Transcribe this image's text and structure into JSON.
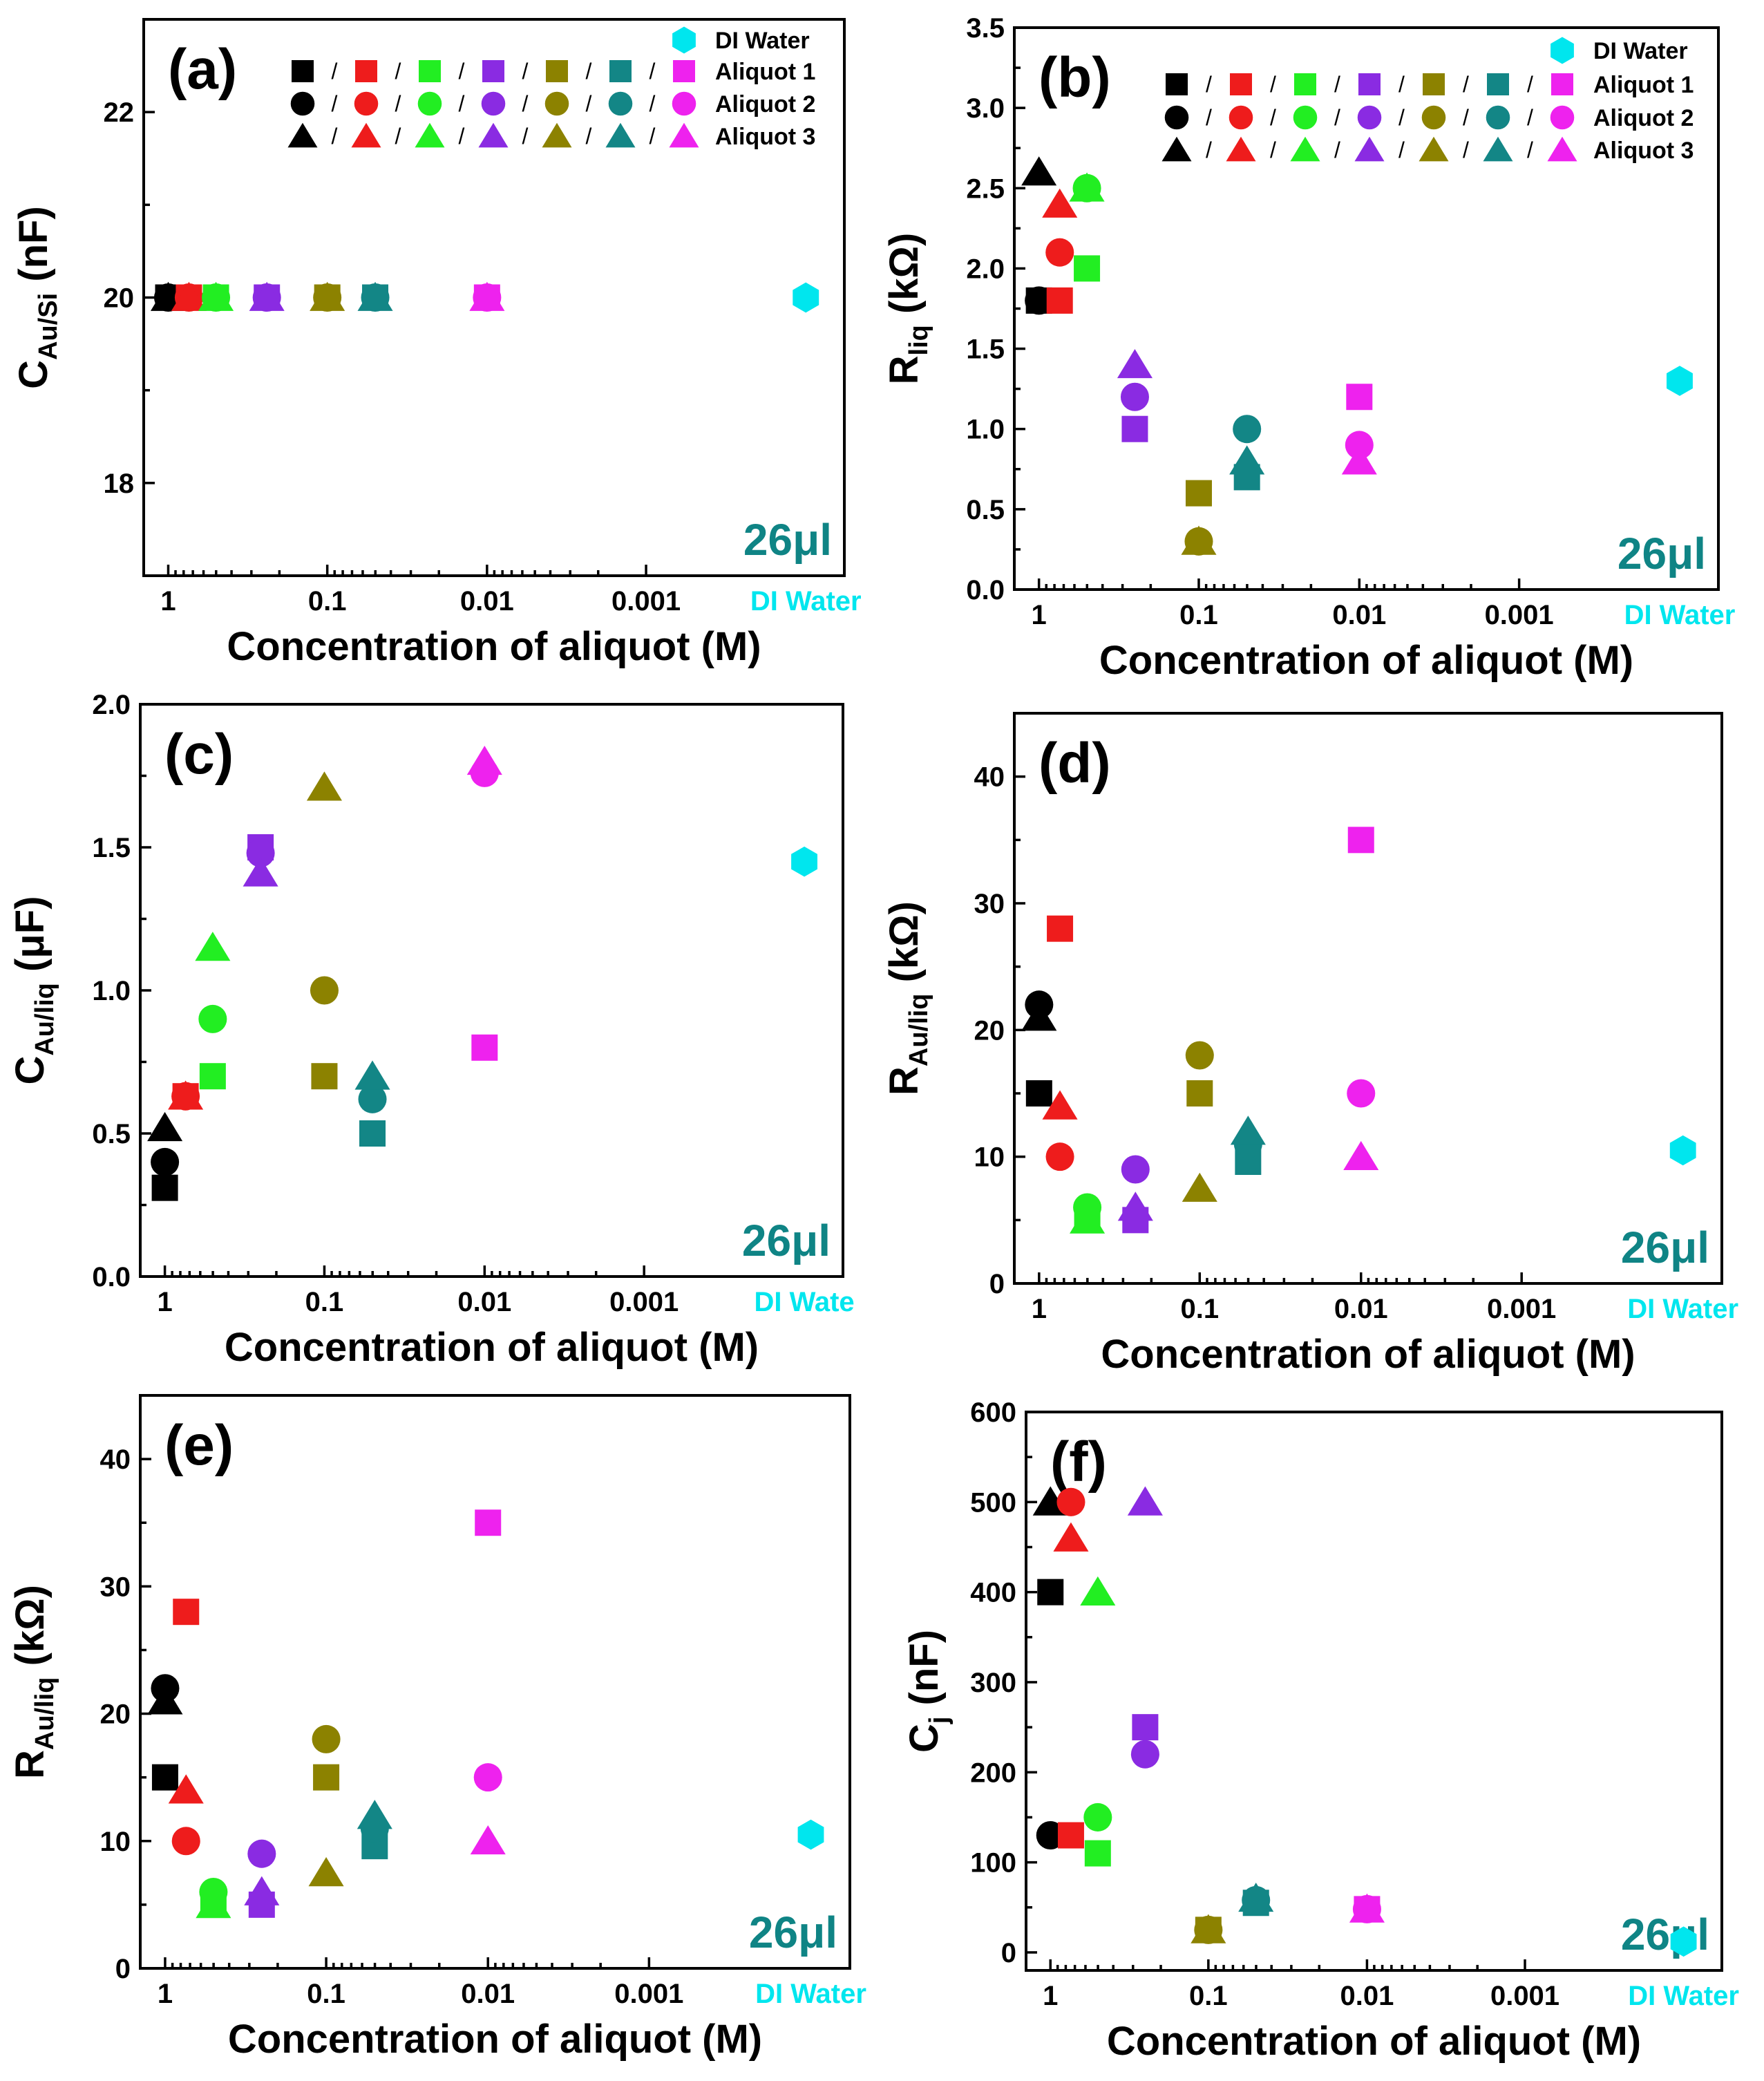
{
  "colors": {
    "black": "#000000",
    "red": "#ee1c1c",
    "green": "#22ee22",
    "purple": "#8a2be2",
    "olive": "#8c8200",
    "teal": "#138686",
    "magenta": "#ee22ee",
    "cyan": "#00e6ee"
  },
  "legend": {
    "aliquot_labels": [
      "Aliquot 1",
      "Aliquot 2",
      "Aliquot 3"
    ],
    "dw_label": "DI Water",
    "slash": "/"
  },
  "chart_data": [
    {
      "type": "scatter",
      "tag": "(a)",
      "volume_label": "26μl",
      "ylabel_main": "C",
      "ylabel_sub": "Au/Si",
      "ylabel_unit": " (nF)",
      "xlabel": "Concentration of aliquot (M)",
      "ylim": [
        17.0,
        23.0
      ],
      "yticks": [
        18,
        20,
        22
      ],
      "ytick_labels": [
        "18",
        "20",
        "22"
      ],
      "x_categories": [
        "1",
        "0.1",
        "0.01",
        "0.001",
        "DI Water"
      ],
      "show_legend": true,
      "points": [
        {
          "c": "black",
          "s": "square",
          "x": 0.0,
          "y": 20.0
        },
        {
          "c": "black",
          "s": "circle",
          "x": 0.0,
          "y": 20.0
        },
        {
          "c": "black",
          "s": "triangle",
          "x": 0.0,
          "y": 20.0
        },
        {
          "c": "red",
          "s": "square",
          "x": 0.13,
          "y": 20.0
        },
        {
          "c": "red",
          "s": "circle",
          "x": 0.13,
          "y": 20.0
        },
        {
          "c": "red",
          "s": "triangle",
          "x": 0.13,
          "y": 20.0
        },
        {
          "c": "green",
          "s": "square",
          "x": 0.3,
          "y": 20.0
        },
        {
          "c": "green",
          "s": "circle",
          "x": 0.3,
          "y": 20.0
        },
        {
          "c": "green",
          "s": "triangle",
          "x": 0.3,
          "y": 20.0
        },
        {
          "c": "purple",
          "s": "square",
          "x": 0.62,
          "y": 20.0
        },
        {
          "c": "purple",
          "s": "circle",
          "x": 0.62,
          "y": 20.0
        },
        {
          "c": "purple",
          "s": "triangle",
          "x": 0.62,
          "y": 20.0
        },
        {
          "c": "olive",
          "s": "square",
          "x": 1.0,
          "y": 20.0
        },
        {
          "c": "olive",
          "s": "circle",
          "x": 1.0,
          "y": 20.0
        },
        {
          "c": "olive",
          "s": "triangle",
          "x": 1.0,
          "y": 20.0
        },
        {
          "c": "teal",
          "s": "square",
          "x": 1.3,
          "y": 20.0
        },
        {
          "c": "teal",
          "s": "circle",
          "x": 1.3,
          "y": 20.0
        },
        {
          "c": "teal",
          "s": "triangle",
          "x": 1.3,
          "y": 20.0
        },
        {
          "c": "magenta",
          "s": "square",
          "x": 2.0,
          "y": 20.0
        },
        {
          "c": "magenta",
          "s": "circle",
          "x": 2.0,
          "y": 20.0
        },
        {
          "c": "magenta",
          "s": "triangle",
          "x": 2.0,
          "y": 20.0
        },
        {
          "c": "cyan",
          "s": "hexagon",
          "x": 4.0,
          "y": 20.0
        }
      ]
    },
    {
      "type": "scatter",
      "tag": "(b)",
      "volume_label": "26μl",
      "ylabel_main": "R",
      "ylabel_sub": "liq",
      "ylabel_unit": " (kΩ)",
      "xlabel": "Concentration of aliquot (M)",
      "ylim": [
        0.0,
        3.5
      ],
      "yticks": [
        0.0,
        0.5,
        1.0,
        1.5,
        2.0,
        2.5,
        3.0,
        3.5
      ],
      "ytick_labels": [
        "0.0",
        "0.5",
        "1.0",
        "1.5",
        "2.0",
        "2.5",
        "3.0",
        "3.5"
      ],
      "x_categories": [
        "1",
        "0.1",
        "0.01",
        "0.001",
        "DI Water"
      ],
      "show_legend": true,
      "points": [
        {
          "c": "black",
          "s": "square",
          "x": 0.0,
          "y": 1.8
        },
        {
          "c": "black",
          "s": "circle",
          "x": 0.0,
          "y": 1.8
        },
        {
          "c": "black",
          "s": "triangle",
          "x": 0.0,
          "y": 2.6
        },
        {
          "c": "red",
          "s": "square",
          "x": 0.13,
          "y": 1.8
        },
        {
          "c": "red",
          "s": "circle",
          "x": 0.13,
          "y": 2.1
        },
        {
          "c": "red",
          "s": "triangle",
          "x": 0.13,
          "y": 2.4
        },
        {
          "c": "green",
          "s": "square",
          "x": 0.3,
          "y": 2.0
        },
        {
          "c": "green",
          "s": "circle",
          "x": 0.3,
          "y": 2.5
        },
        {
          "c": "green",
          "s": "triangle",
          "x": 0.3,
          "y": 2.5
        },
        {
          "c": "purple",
          "s": "square",
          "x": 0.6,
          "y": 1.0
        },
        {
          "c": "purple",
          "s": "circle",
          "x": 0.6,
          "y": 1.2
        },
        {
          "c": "purple",
          "s": "triangle",
          "x": 0.6,
          "y": 1.4
        },
        {
          "c": "olive",
          "s": "square",
          "x": 1.0,
          "y": 0.6
        },
        {
          "c": "olive",
          "s": "circle",
          "x": 1.0,
          "y": 0.3
        },
        {
          "c": "olive",
          "s": "triangle",
          "x": 1.0,
          "y": 0.3
        },
        {
          "c": "teal",
          "s": "square",
          "x": 1.3,
          "y": 0.7
        },
        {
          "c": "teal",
          "s": "circle",
          "x": 1.3,
          "y": 1.0
        },
        {
          "c": "teal",
          "s": "triangle",
          "x": 1.3,
          "y": 0.8
        },
        {
          "c": "magenta",
          "s": "square",
          "x": 2.0,
          "y": 1.2
        },
        {
          "c": "magenta",
          "s": "circle",
          "x": 2.0,
          "y": 0.9
        },
        {
          "c": "magenta",
          "s": "triangle",
          "x": 2.0,
          "y": 0.8
        },
        {
          "c": "cyan",
          "s": "hexagon",
          "x": 4.0,
          "y": 1.3
        }
      ]
    },
    {
      "type": "scatter",
      "tag": "(c)",
      "volume_label": "26μl",
      "ylabel_main": "C",
      "ylabel_sub": "Au/liq",
      "ylabel_unit": " (μF)",
      "xlabel": "Concentration of aliquot (M)",
      "ylim": [
        0.0,
        2.0
      ],
      "yticks": [
        0.0,
        0.5,
        1.0,
        1.5,
        2.0
      ],
      "ytick_labels": [
        "0.0",
        "0.5",
        "1.0",
        "1.5",
        "2.0"
      ],
      "x_categories": [
        "1",
        "0.1",
        "0.01",
        "0.001",
        "DI Wate"
      ],
      "show_legend": false,
      "points": [
        {
          "c": "black",
          "s": "square",
          "x": 0.0,
          "y": 0.31
        },
        {
          "c": "black",
          "s": "circle",
          "x": 0.0,
          "y": 0.4
        },
        {
          "c": "black",
          "s": "triangle",
          "x": 0.0,
          "y": 0.52
        },
        {
          "c": "red",
          "s": "square",
          "x": 0.13,
          "y": 0.63
        },
        {
          "c": "red",
          "s": "circle",
          "x": 0.13,
          "y": 0.63
        },
        {
          "c": "red",
          "s": "triangle",
          "x": 0.13,
          "y": 0.63
        },
        {
          "c": "green",
          "s": "square",
          "x": 0.3,
          "y": 0.7
        },
        {
          "c": "green",
          "s": "circle",
          "x": 0.3,
          "y": 0.9
        },
        {
          "c": "green",
          "s": "triangle",
          "x": 0.3,
          "y": 1.15
        },
        {
          "c": "purple",
          "s": "square",
          "x": 0.6,
          "y": 1.5
        },
        {
          "c": "purple",
          "s": "circle",
          "x": 0.6,
          "y": 1.48
        },
        {
          "c": "purple",
          "s": "triangle",
          "x": 0.6,
          "y": 1.41
        },
        {
          "c": "olive",
          "s": "square",
          "x": 1.0,
          "y": 0.7
        },
        {
          "c": "olive",
          "s": "circle",
          "x": 1.0,
          "y": 1.0
        },
        {
          "c": "olive",
          "s": "triangle",
          "x": 1.0,
          "y": 1.71
        },
        {
          "c": "teal",
          "s": "square",
          "x": 1.3,
          "y": 0.5
        },
        {
          "c": "teal",
          "s": "circle",
          "x": 1.3,
          "y": 0.62
        },
        {
          "c": "teal",
          "s": "triangle",
          "x": 1.3,
          "y": 0.7
        },
        {
          "c": "magenta",
          "s": "square",
          "x": 2.0,
          "y": 0.8
        },
        {
          "c": "magenta",
          "s": "circle",
          "x": 2.0,
          "y": 1.76
        },
        {
          "c": "magenta",
          "s": "triangle",
          "x": 2.0,
          "y": 1.8
        },
        {
          "c": "cyan",
          "s": "hexagon",
          "x": 4.0,
          "y": 1.45
        }
      ]
    },
    {
      "type": "scatter",
      "tag": "(d)",
      "volume_label": "26μl",
      "ylabel_main": "R",
      "ylabel_sub": "Au/liq",
      "ylabel_unit": " (kΩ)",
      "xlabel": "Concentration of aliquot (M)",
      "ylim": [
        0,
        45
      ],
      "yticks": [
        0,
        10,
        20,
        30,
        40
      ],
      "ytick_labels": [
        "0",
        "10",
        "20",
        "30",
        "40"
      ],
      "x_categories": [
        "1",
        "0.1",
        "0.01",
        "0.001",
        "DI Water"
      ],
      "show_legend": false,
      "points": [
        {
          "c": "black",
          "s": "square",
          "x": 0.0,
          "y": 15.0
        },
        {
          "c": "black",
          "s": "circle",
          "x": 0.0,
          "y": 22.0
        },
        {
          "c": "black",
          "s": "triangle",
          "x": 0.0,
          "y": 21.0
        },
        {
          "c": "red",
          "s": "square",
          "x": 0.13,
          "y": 28.0
        },
        {
          "c": "red",
          "s": "circle",
          "x": 0.13,
          "y": 10.0
        },
        {
          "c": "red",
          "s": "triangle",
          "x": 0.13,
          "y": 14.0
        },
        {
          "c": "green",
          "s": "square",
          "x": 0.3,
          "y": 5.0
        },
        {
          "c": "green",
          "s": "circle",
          "x": 0.3,
          "y": 6.0
        },
        {
          "c": "green",
          "s": "triangle",
          "x": 0.3,
          "y": 5.0
        },
        {
          "c": "purple",
          "s": "square",
          "x": 0.6,
          "y": 5.0
        },
        {
          "c": "purple",
          "s": "circle",
          "x": 0.6,
          "y": 9.0
        },
        {
          "c": "purple",
          "s": "triangle",
          "x": 0.6,
          "y": 6.0
        },
        {
          "c": "olive",
          "s": "square",
          "x": 1.0,
          "y": 15.0
        },
        {
          "c": "olive",
          "s": "circle",
          "x": 1.0,
          "y": 18.0
        },
        {
          "c": "olive",
          "s": "triangle",
          "x": 1.0,
          "y": 7.5
        },
        {
          "c": "teal",
          "s": "square",
          "x": 1.3,
          "y": 9.6
        },
        {
          "c": "teal",
          "s": "circle",
          "x": 1.3,
          "y": 11.0
        },
        {
          "c": "teal",
          "s": "triangle",
          "x": 1.3,
          "y": 12.0
        },
        {
          "c": "magenta",
          "s": "square",
          "x": 2.0,
          "y": 35.0
        },
        {
          "c": "magenta",
          "s": "circle",
          "x": 2.0,
          "y": 15.0
        },
        {
          "c": "magenta",
          "s": "triangle",
          "x": 2.0,
          "y": 10.0
        },
        {
          "c": "cyan",
          "s": "hexagon",
          "x": 4.0,
          "y": 10.5
        }
      ]
    },
    {
      "type": "scatter",
      "tag": "(e)",
      "volume_label": "26μl",
      "ylabel_main": "R",
      "ylabel_sub": "Au/liq",
      "ylabel_unit": " (kΩ)",
      "xlabel": "Concentration of aliquot (M)",
      "ylim": [
        0,
        45
      ],
      "yticks": [
        0,
        10,
        20,
        30,
        40
      ],
      "ytick_labels": [
        "0",
        "10",
        "20",
        "30",
        "40"
      ],
      "x_categories": [
        "1",
        "0.1",
        "0.01",
        "0.001",
        "DI Water"
      ],
      "show_legend": false,
      "points": [
        {
          "c": "black",
          "s": "square",
          "x": 0.0,
          "y": 15.0
        },
        {
          "c": "black",
          "s": "circle",
          "x": 0.0,
          "y": 22.0
        },
        {
          "c": "black",
          "s": "triangle",
          "x": 0.0,
          "y": 21.0
        },
        {
          "c": "red",
          "s": "square",
          "x": 0.13,
          "y": 28.0
        },
        {
          "c": "red",
          "s": "circle",
          "x": 0.13,
          "y": 10.0
        },
        {
          "c": "red",
          "s": "triangle",
          "x": 0.13,
          "y": 14.0
        },
        {
          "c": "green",
          "s": "square",
          "x": 0.3,
          "y": 5.0
        },
        {
          "c": "green",
          "s": "circle",
          "x": 0.3,
          "y": 6.0
        },
        {
          "c": "green",
          "s": "triangle",
          "x": 0.3,
          "y": 5.0
        },
        {
          "c": "purple",
          "s": "square",
          "x": 0.6,
          "y": 5.0
        },
        {
          "c": "purple",
          "s": "circle",
          "x": 0.6,
          "y": 9.0
        },
        {
          "c": "purple",
          "s": "triangle",
          "x": 0.6,
          "y": 6.0
        },
        {
          "c": "olive",
          "s": "square",
          "x": 1.0,
          "y": 15.0
        },
        {
          "c": "olive",
          "s": "circle",
          "x": 1.0,
          "y": 18.0
        },
        {
          "c": "olive",
          "s": "triangle",
          "x": 1.0,
          "y": 7.5
        },
        {
          "c": "teal",
          "s": "square",
          "x": 1.3,
          "y": 9.6
        },
        {
          "c": "teal",
          "s": "circle",
          "x": 1.3,
          "y": 11.0
        },
        {
          "c": "teal",
          "s": "triangle",
          "x": 1.3,
          "y": 12.0
        },
        {
          "c": "magenta",
          "s": "square",
          "x": 2.0,
          "y": 35.0
        },
        {
          "c": "magenta",
          "s": "circle",
          "x": 2.0,
          "y": 15.0
        },
        {
          "c": "magenta",
          "s": "triangle",
          "x": 2.0,
          "y": 10.0
        },
        {
          "c": "cyan",
          "s": "hexagon",
          "x": 4.0,
          "y": 10.5
        }
      ]
    },
    {
      "type": "scatter",
      "tag": "(f)",
      "volume_label": "26μl",
      "ylabel_main": "C",
      "ylabel_sub": "j",
      "ylabel_unit": " (nF)",
      "xlabel": "Concentration of aliquot (M)",
      "ylim": [
        -20,
        600
      ],
      "yticks": [
        0,
        100,
        200,
        300,
        400,
        500,
        600
      ],
      "ytick_labels": [
        "0",
        "100",
        "200",
        "300",
        "400",
        "500",
        "600"
      ],
      "x_categories": [
        "1",
        "0.1",
        "0.01",
        "0.001",
        "DI Water"
      ],
      "show_legend": false,
      "points": [
        {
          "c": "black",
          "s": "square",
          "x": 0.0,
          "y": 400
        },
        {
          "c": "black",
          "s": "circle",
          "x": 0.0,
          "y": 130
        },
        {
          "c": "black",
          "s": "triangle",
          "x": 0.0,
          "y": 500
        },
        {
          "c": "red",
          "s": "square",
          "x": 0.13,
          "y": 130
        },
        {
          "c": "red",
          "s": "circle",
          "x": 0.13,
          "y": 500
        },
        {
          "c": "red",
          "s": "triangle",
          "x": 0.13,
          "y": 460
        },
        {
          "c": "green",
          "s": "square",
          "x": 0.3,
          "y": 110
        },
        {
          "c": "green",
          "s": "circle",
          "x": 0.3,
          "y": 150
        },
        {
          "c": "green",
          "s": "triangle",
          "x": 0.3,
          "y": 400
        },
        {
          "c": "purple",
          "s": "square",
          "x": 0.6,
          "y": 250
        },
        {
          "c": "purple",
          "s": "circle",
          "x": 0.6,
          "y": 220
        },
        {
          "c": "purple",
          "s": "triangle",
          "x": 0.6,
          "y": 500
        },
        {
          "c": "olive",
          "s": "square",
          "x": 1.0,
          "y": 25
        },
        {
          "c": "olive",
          "s": "circle",
          "x": 1.0,
          "y": 25
        },
        {
          "c": "olive",
          "s": "triangle",
          "x": 1.0,
          "y": 25
        },
        {
          "c": "teal",
          "s": "square",
          "x": 1.3,
          "y": 55
        },
        {
          "c": "teal",
          "s": "circle",
          "x": 1.3,
          "y": 58
        },
        {
          "c": "teal",
          "s": "triangle",
          "x": 1.3,
          "y": 60
        },
        {
          "c": "magenta",
          "s": "square",
          "x": 2.0,
          "y": 48
        },
        {
          "c": "magenta",
          "s": "circle",
          "x": 2.0,
          "y": 48
        },
        {
          "c": "magenta",
          "s": "triangle",
          "x": 2.0,
          "y": 48
        },
        {
          "c": "cyan",
          "s": "hexagon",
          "x": 4.0,
          "y": 12
        }
      ]
    }
  ]
}
